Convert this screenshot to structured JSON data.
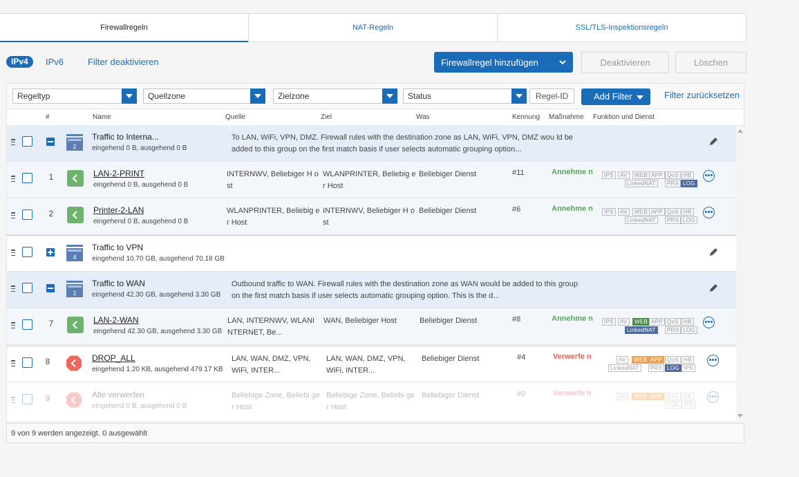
{
  "tabs": [
    {
      "label": "Firewallregeln"
    },
    {
      "label": "NAT-Regeln"
    },
    {
      "label": "SSL/TLS-Inspektionsregeln"
    }
  ],
  "toolbar": {
    "ipv4": "IPv4",
    "ipv6": "IPv6",
    "filter_off": "Filter deaktivieren",
    "add_rule": "Firewallregel hinzufügen",
    "deactivate": "Deaktivieren",
    "delete": "Löschen"
  },
  "filters": {
    "regeltyp": "Regeltyp",
    "quellzone": "Quellzone",
    "zielzone": "Zielzone",
    "status": "Status",
    "regel_id": "Regel-ID",
    "add_filter": "Add Filter",
    "reset": "Filter zurücksetzen"
  },
  "columns": {
    "num": "#",
    "name": "Name",
    "quelle": "Quelle",
    "ziel": "Ziel",
    "was": "Was",
    "kennung": "Kennung",
    "massnahme": "Maßnahme",
    "funktion": "Funktion und Dienst"
  },
  "rows": [
    {
      "name": "Traffic to Interna...",
      "stats": "eingehend 0 B, ausgehend 0 B",
      "group_num": "2",
      "desc": "To LAN, WiFi, VPN, DMZ. Firewall rules with the destination zone as LAN, WiFi, VPN, DMZ wou ld be added to this group on the first match basis if user selects automatic grouping option..."
    },
    {
      "num": "1",
      "name": "LAN-2-PRINT",
      "stats": "eingehend 0 B, ausgehend 0 B",
      "quelle": "INTERNWV, Beliebiger H ost",
      "ziel": "WLANPRINTER, Beliebig er Host",
      "was": "Beliebiger Dienst",
      "kennung": "#11",
      "massnahme": "Annehme n"
    },
    {
      "num": "2",
      "name": "Printer-2-LAN",
      "stats": "eingehend 0 B, ausgehend 0 B",
      "quelle": "WLANPRINTER, Beliebig er Host",
      "ziel": "INTERNWV, Beliebiger H ost",
      "was": "Beliebiger Dienst",
      "kennung": "#6",
      "massnahme": "Annehme n"
    },
    {
      "name": "Traffic to VPN",
      "stats": "eingehend 10.70 GB, ausgehend 70.18 GB",
      "group_num": "4"
    },
    {
      "name": "Traffic to WAN",
      "stats": "eingehend 42.30 GB, ausgehend 3.30 GB",
      "group_num": "1",
      "desc": "Outbound traffic to WAN. Firewall rules with the destination zone as WAN would be added to this group on the first match basis if user selects automatic grouping option. This is the d..."
    },
    {
      "num": "7",
      "name": "LAN-2-WAN",
      "stats": "eingehend 42.30 GB, ausgehend 3.30 GB",
      "quelle": "LAN, INTERNWV, WLANI NTERNET, Be...",
      "ziel": "WAN, Beliebiger Host",
      "was": "Beliebiger Dienst",
      "kennung": "#8",
      "massnahme": "Annehme n"
    },
    {
      "num": "8",
      "name": "DROP_ALL",
      "stats": "eingehend 1.20 KB, ausgehend 479.17 KB",
      "quelle": "LAN, WAN, DMZ, VPN, WiFi, INTER...",
      "ziel": "LAN, WAN, DMZ, VPN, WiFi, INTER...",
      "was": "Beliebiger Dienst",
      "kennung": "#4",
      "massnahme": "Verwerfe n"
    },
    {
      "num": "9",
      "name": "Alle verwerfen",
      "stats": "eingehend 0 B, ausgehend 0 B",
      "quelle": "Beliebige Zone, Beliebi ger Host",
      "ziel": "Beliebige Zone, Beliebi ger Host",
      "was": "Beliebiger Dienst",
      "kennung": "#0",
      "massnahme": "Verwerfe n"
    }
  ],
  "badges": {
    "ips": "IPS",
    "av": "AV",
    "web": "WEB",
    "app": "APP",
    "qos": "QoS",
    "hb": "HB",
    "linkednat": "LinkedNAT",
    "prx": "PRX",
    "log": "LOG"
  },
  "footer": "9 von 9 werden angezeigt. 0 ausgewählt",
  "colors": {
    "accent": "#1a6cb8",
    "accept": "#5aa55a",
    "drop": "#e8605a",
    "group_bg": "#e4edf8"
  }
}
